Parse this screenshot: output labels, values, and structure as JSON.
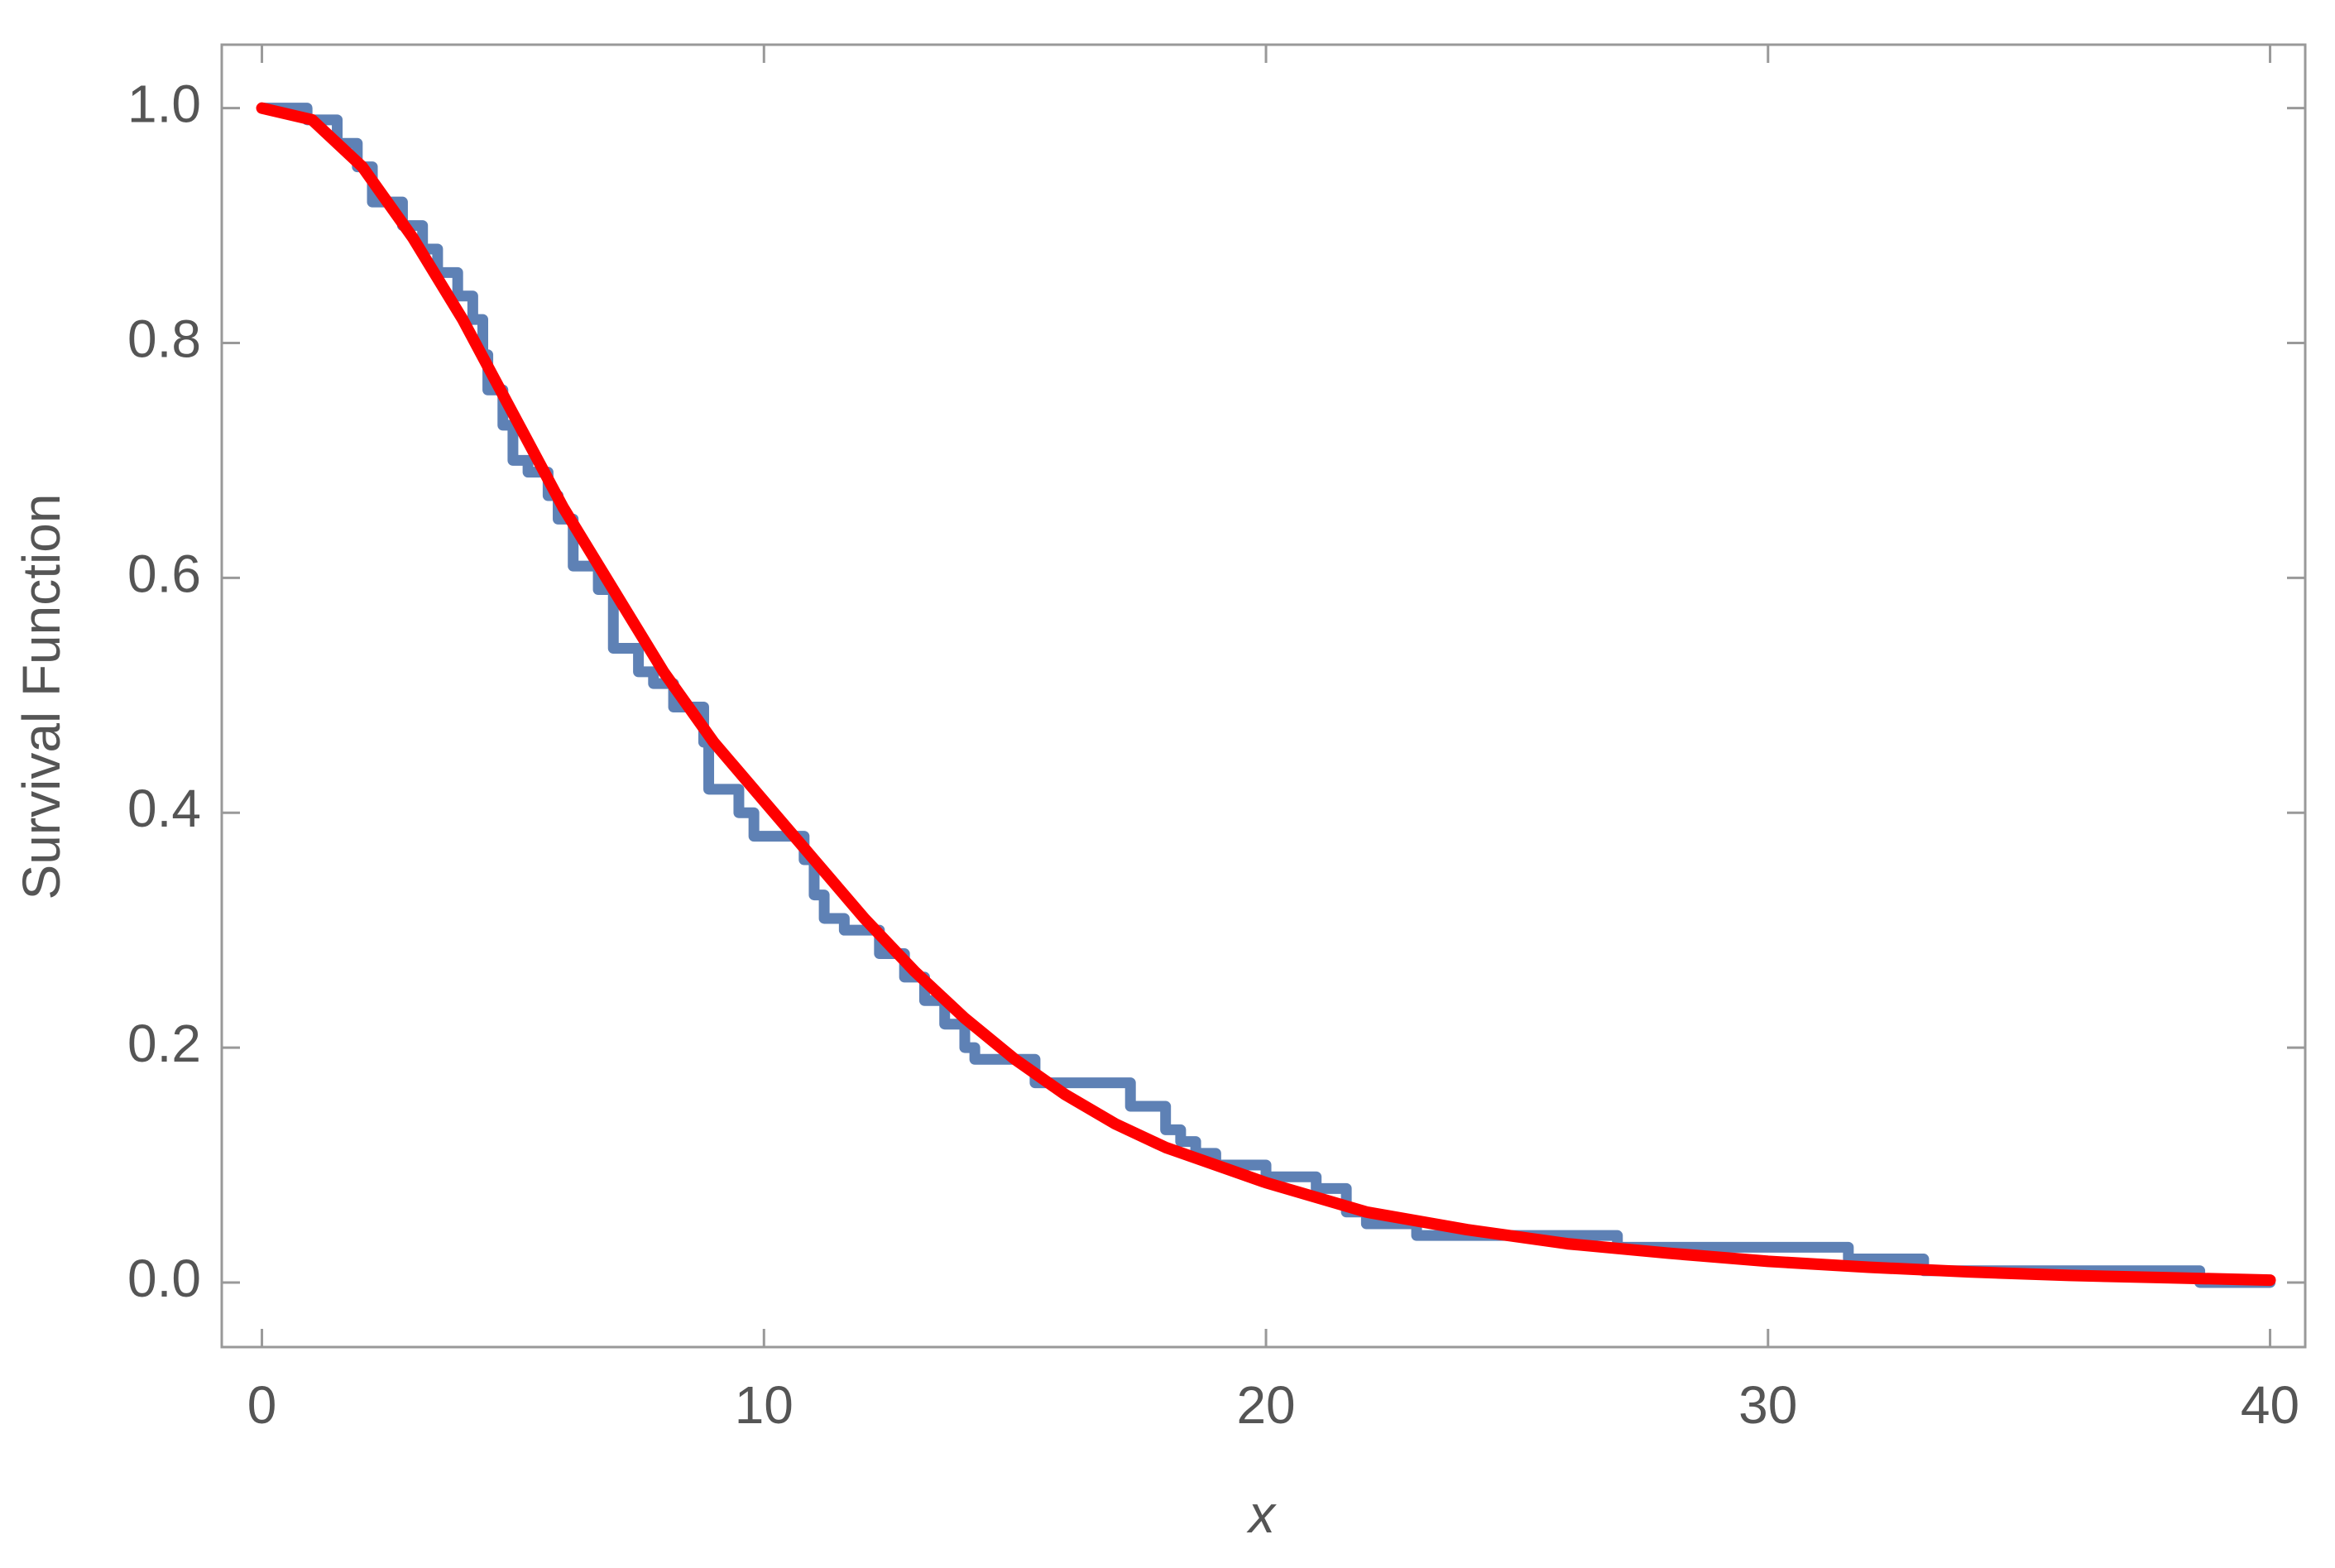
{
  "chart_data": {
    "type": "line",
    "x_label": "x",
    "y_label": "Survival Function",
    "xlim": [
      -0.8,
      40.7
    ],
    "ylim": [
      -0.055,
      1.054
    ],
    "xticks": [
      0,
      10,
      20,
      30,
      40
    ],
    "yticks": [
      {
        "value": 0,
        "label": "0.0"
      },
      0.2,
      0.4,
      0.6,
      0.8,
      {
        "value": 1,
        "label": "1.0"
      }
    ],
    "series": [
      {
        "color": "#5e81b5",
        "step": true,
        "x": [
          0,
          0.9,
          1.5,
          1.9,
          2.2,
          2.8,
          3.2,
          3.5,
          3.9,
          4.2,
          4.4,
          4.5,
          4.8,
          5.0,
          5.3,
          5.7,
          5.9,
          6.2,
          6.7,
          7.0,
          7.5,
          7.8,
          8.2,
          8.8,
          8.9,
          9.5,
          9.8,
          10.8,
          11.0,
          11.2,
          11.6,
          12.3,
          12.8,
          13.2,
          13.6,
          14.0,
          14.2,
          15.4,
          17.3,
          18.0,
          18.3,
          18.6,
          19.0,
          20.0,
          21.0,
          21.6,
          22.0,
          23.0,
          27.0,
          31.6,
          33.1,
          38.6,
          40
        ],
        "values": [
          1.0,
          0.99,
          0.97,
          0.95,
          0.92,
          0.9,
          0.88,
          0.86,
          0.84,
          0.82,
          0.79,
          0.76,
          0.73,
          0.7,
          0.69,
          0.67,
          0.65,
          0.61,
          0.59,
          0.54,
          0.52,
          0.51,
          0.49,
          0.46,
          0.42,
          0.4,
          0.38,
          0.36,
          0.33,
          0.31,
          0.3,
          0.28,
          0.26,
          0.24,
          0.22,
          0.2,
          0.19,
          0.17,
          0.15,
          0.13,
          0.12,
          0.11,
          0.1,
          0.09,
          0.08,
          0.06,
          0.05,
          0.04,
          0.03,
          0.02,
          0.01,
          0.0,
          0.0
        ]
      },
      {
        "color": "#ff0000",
        "step": false,
        "x": [
          0,
          1,
          2,
          3,
          4,
          5,
          6,
          7,
          8,
          9,
          10,
          11,
          12,
          13,
          14,
          15,
          16,
          17,
          18,
          19,
          20,
          22,
          24,
          26,
          28,
          30,
          32,
          34,
          36,
          38,
          40
        ],
        "values": [
          1.0,
          0.99,
          0.95,
          0.89,
          0.82,
          0.74,
          0.66,
          0.59,
          0.52,
          0.46,
          0.41,
          0.36,
          0.31,
          0.265,
          0.225,
          0.19,
          0.16,
          0.135,
          0.115,
          0.1,
          0.085,
          0.06,
          0.045,
          0.033,
          0.025,
          0.018,
          0.013,
          0.009,
          0.006,
          0.004,
          0.002
        ]
      }
    ]
  }
}
